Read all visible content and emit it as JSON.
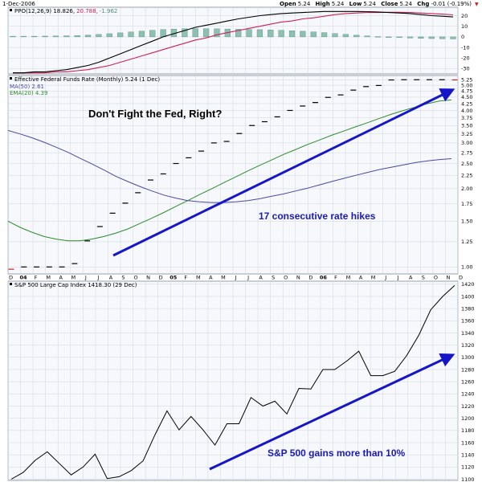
{
  "header": {
    "date": "1-Dec-2006",
    "quote_labels": {
      "open": "Open",
      "high": "High",
      "low": "Low",
      "close": "Close",
      "chg": "Chg"
    },
    "quote_values": {
      "open": "5.24",
      "high": "5.24",
      "low": "5.24",
      "close": "5.24",
      "chg": "-0.01 (-0.19%)"
    },
    "sign": "▼"
  },
  "chart_data": [
    {
      "type": "bar+line",
      "panel": "ppo",
      "legend": "PPO(12,26,9) 18.826,",
      "legend_signal": "20.788,",
      "legend_hist": "-1.962",
      "y_ticks": [
        "20",
        "10",
        "0",
        "-10",
        "-20",
        "-30"
      ],
      "ylim": [
        -35,
        28
      ],
      "histogram": [
        0.6,
        0.6,
        0.6,
        0.7,
        0.8,
        1.0,
        1.3,
        1.7,
        2.3,
        3.0,
        3.8,
        4.6,
        5.4,
        6.2,
        6.9,
        7.4,
        7.7,
        7.8,
        7.7,
        7.6,
        7.4,
        7.2,
        7.0,
        6.8,
        6.5,
        6.2,
        5.8,
        5.3,
        4.7,
        4.0,
        3.2,
        2.4,
        1.6,
        0.9,
        0.3,
        -0.2,
        -0.7,
        -1.1,
        -1.4,
        -1.6,
        -1.8,
        -1.96
      ],
      "ppo": [
        -34,
        -34,
        -33,
        -33,
        -32,
        -31,
        -29,
        -27,
        -24,
        -20,
        -16,
        -12,
        -8,
        -4,
        0,
        3,
        6,
        9,
        11,
        13,
        15,
        17,
        18.5,
        20,
        21,
        22,
        22.5,
        23,
        23.5,
        24,
        24,
        24,
        24,
        23.8,
        23.5,
        23,
        22.5,
        22,
        21,
        20,
        19.5,
        18.8
      ],
      "signal": [
        -34,
        -34,
        -34,
        -34,
        -33,
        -33,
        -32,
        -31,
        -29,
        -27,
        -24,
        -21,
        -18,
        -15,
        -12,
        -9,
        -6,
        -3,
        -1,
        2,
        4,
        6,
        8,
        10,
        12,
        14,
        15,
        17,
        18,
        19.5,
        21,
        22,
        22.5,
        23,
        23,
        23.2,
        23.2,
        23,
        22.5,
        22,
        21.5,
        20.8
      ]
    },
    {
      "type": "step+line",
      "panel": "fed-funds",
      "title": "Effective Federal Funds Rate (Monthly) 5.24 (1 Dec)",
      "legend_ma": "MA(50) 2.61",
      "legend_ema": "EMA(20) 4.39",
      "y_ticks": [
        "5.25",
        "5.00",
        "4.75",
        "4.50",
        "4.25",
        "4.00",
        "3.75",
        "3.50",
        "3.25",
        "3.00",
        "2.75",
        "2.50",
        "2.25",
        "2.00",
        "1.75",
        "1.50",
        "1.25",
        "1.00"
      ],
      "y_scale": "log",
      "ylim": [
        0.94,
        5.45
      ],
      "rate": [
        0.98,
        1.0,
        1.0,
        1.0,
        1.0,
        1.03,
        1.26,
        1.43,
        1.61,
        1.76,
        1.93,
        2.16,
        2.28,
        2.5,
        2.63,
        2.79,
        3.0,
        3.04,
        3.26,
        3.5,
        3.62,
        3.78,
        4.0,
        4.16,
        4.29,
        4.49,
        4.59,
        4.79,
        4.94,
        4.99,
        5.24,
        5.25,
        5.25,
        5.25,
        5.25,
        5.24
      ],
      "ema20": [
        1.5,
        1.42,
        1.36,
        1.31,
        1.28,
        1.26,
        1.26,
        1.28,
        1.31,
        1.35,
        1.4,
        1.47,
        1.54,
        1.62,
        1.71,
        1.8,
        1.9,
        2.0,
        2.11,
        2.22,
        2.34,
        2.46,
        2.58,
        2.71,
        2.83,
        2.96,
        3.08,
        3.21,
        3.33,
        3.46,
        3.59,
        3.73,
        3.87,
        4.0,
        4.12,
        4.25,
        4.35,
        4.39
      ],
      "ma50": [
        3.35,
        3.25,
        3.14,
        3.02,
        2.89,
        2.76,
        2.62,
        2.49,
        2.36,
        2.23,
        2.13,
        2.04,
        1.96,
        1.89,
        1.84,
        1.8,
        1.78,
        1.77,
        1.77,
        1.78,
        1.8,
        1.83,
        1.87,
        1.91,
        1.96,
        2.01,
        2.07,
        2.13,
        2.19,
        2.25,
        2.31,
        2.37,
        2.42,
        2.47,
        2.52,
        2.56,
        2.59,
        2.61
      ],
      "annotation_title": "Don't Fight the Fed, Right?",
      "annotation_arrow": "17 consecutive rate hikes"
    },
    {
      "type": "line",
      "panel": "sp500",
      "title": "S&P 500 Large Cap Index 1418.30 (29 Dec)",
      "y_ticks": [
        "1420",
        "1400",
        "1380",
        "1360",
        "1340",
        "1320",
        "1300",
        "1280",
        "1260",
        "1240",
        "1220",
        "1200",
        "1180",
        "1160",
        "1140",
        "1120",
        "1100"
      ],
      "ylim": [
        1098,
        1425
      ],
      "values": [
        1100,
        1111,
        1131,
        1145,
        1126,
        1107,
        1120,
        1141,
        1101,
        1104,
        1114,
        1130,
        1173,
        1212,
        1181,
        1203,
        1181,
        1156,
        1191,
        1191,
        1234,
        1220,
        1228,
        1207,
        1249,
        1248,
        1280,
        1280,
        1294,
        1310,
        1270,
        1270,
        1277,
        1303,
        1336,
        1378,
        1400,
        1418
      ],
      "annotation": "S&P 500 gains more than 10%"
    }
  ],
  "x_axis": {
    "months": [
      "D",
      "04",
      "F",
      "M",
      "A",
      "M",
      "J",
      "J",
      "A",
      "S",
      "O",
      "N",
      "D",
      "05",
      "F",
      "M",
      "A",
      "M",
      "J",
      "J",
      "A",
      "S",
      "O",
      "N",
      "D",
      "06",
      "F",
      "M",
      "A",
      "M",
      "J",
      "J",
      "A",
      "S",
      "O",
      "N",
      "D"
    ],
    "bold": [
      "04",
      "05",
      "06"
    ]
  },
  "colors": {
    "panel_bg": "#f6f8fb",
    "grid": "#cfd6e2",
    "hist_fill": "#8fbfb0",
    "hist_stroke": "#4f8f80",
    "ppo": "#000000",
    "signal": "#cc2255",
    "rate": "#000000",
    "ema": "#2e8b2e",
    "ma": "#4a4aa0",
    "sp": "#000000",
    "annot": "#1b1bb4",
    "arrow": "#1616c8"
  }
}
